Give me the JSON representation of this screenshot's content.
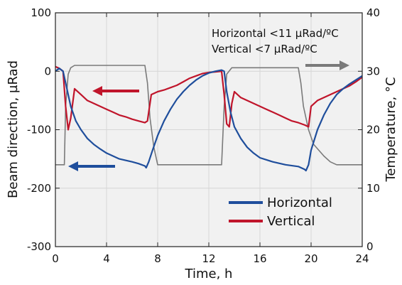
{
  "chart_data": {
    "type": "line",
    "xlabel": "Time, h",
    "ylabel_left": "Beam direction, µRad",
    "ylabel_right": "Temperature, °C",
    "xlim": [
      0,
      24
    ],
    "ylim_left": [
      -300,
      100
    ],
    "ylim_right": [
      0,
      40
    ],
    "x_ticks": [
      0,
      4,
      8,
      12,
      16,
      20,
      24
    ],
    "y_left_ticks": [
      -300,
      -200,
      -100,
      0,
      100
    ],
    "y_right_ticks": [
      0,
      10,
      20,
      30,
      40
    ],
    "grid": true,
    "legend_position": "bottom-right",
    "annotations": [
      "Horizontal <11 µRad/ºC",
      "Vertical <7 µRad/ºC"
    ],
    "series": [
      {
        "name": "Horizontal",
        "axis": "left",
        "color": "#1f4e9c",
        "x": [
          0,
          0.3,
          0.6,
          0.9,
          1.2,
          1.6,
          2,
          2.5,
          3,
          3.5,
          4,
          5,
          6,
          6.5,
          7,
          7.1,
          7.3,
          7.6,
          8,
          8.5,
          9,
          9.5,
          10,
          10.5,
          11,
          11.5,
          12,
          12.5,
          13,
          13.2,
          13.4,
          13.7,
          14,
          14.5,
          15,
          15.5,
          16,
          17,
          18,
          19,
          19.5,
          19.6,
          19.8,
          20,
          20.5,
          21,
          21.5,
          22,
          22.5,
          23,
          23.5,
          24
        ],
        "y": [
          0,
          5,
          0,
          -30,
          -60,
          -85,
          -100,
          -115,
          -125,
          -133,
          -140,
          -150,
          -155,
          -158,
          -162,
          -165,
          -155,
          -135,
          -110,
          -85,
          -65,
          -48,
          -35,
          -24,
          -15,
          -8,
          -3,
          0,
          2,
          0,
          -35,
          -70,
          -95,
          -115,
          -130,
          -140,
          -148,
          -155,
          -160,
          -163,
          -168,
          -170,
          -160,
          -135,
          -100,
          -75,
          -55,
          -40,
          -30,
          -22,
          -15,
          -8
        ]
      },
      {
        "name": "Vertical",
        "axis": "left",
        "color": "#c0152b",
        "x": [
          0,
          0.3,
          0.6,
          0.8,
          1,
          1.2,
          1.5,
          2,
          2.5,
          3,
          3.5,
          4,
          4.5,
          5,
          5.5,
          6,
          6.5,
          7,
          7.2,
          7.5,
          8,
          8.5,
          9,
          9.5,
          10,
          10.5,
          11,
          11.5,
          12,
          12.5,
          13,
          13.2,
          13.4,
          13.6,
          13.8,
          14,
          14.5,
          15,
          15.5,
          16,
          16.5,
          17,
          17.5,
          18,
          18.5,
          19,
          19.5,
          19.8,
          20,
          20.5,
          21,
          21.5,
          22,
          22.5,
          23,
          23.5,
          24
        ],
        "y": [
          8,
          5,
          0,
          -60,
          -100,
          -80,
          -30,
          -40,
          -50,
          -55,
          -60,
          -65,
          -70,
          -75,
          -78,
          -82,
          -85,
          -88,
          -85,
          -40,
          -35,
          -32,
          -28,
          -24,
          -18,
          -12,
          -8,
          -4,
          -2,
          -1,
          0,
          -40,
          -90,
          -95,
          -55,
          -35,
          -45,
          -50,
          -55,
          -60,
          -65,
          -70,
          -75,
          -80,
          -85,
          -88,
          -92,
          -95,
          -60,
          -50,
          -45,
          -40,
          -35,
          -30,
          -25,
          -18,
          -10
        ]
      },
      {
        "name": "",
        "axis": "right",
        "color": "#7a7a7a",
        "x": [
          0,
          0.7,
          0.8,
          1.0,
          1.2,
          1.5,
          7,
          7.2,
          7.4,
          7.7,
          8,
          12.8,
          13,
          13.2,
          13.4,
          13.8,
          19,
          19.2,
          19.4,
          19.8,
          20.2,
          21,
          21.5,
          22,
          24
        ],
        "y": [
          14,
          14,
          24,
          29.5,
          30.6,
          31,
          31,
          28,
          22,
          17,
          14,
          14,
          14,
          24,
          29.5,
          30.6,
          30.6,
          28,
          24,
          20,
          17.5,
          15.5,
          14.5,
          14,
          14
        ]
      }
    ]
  }
}
